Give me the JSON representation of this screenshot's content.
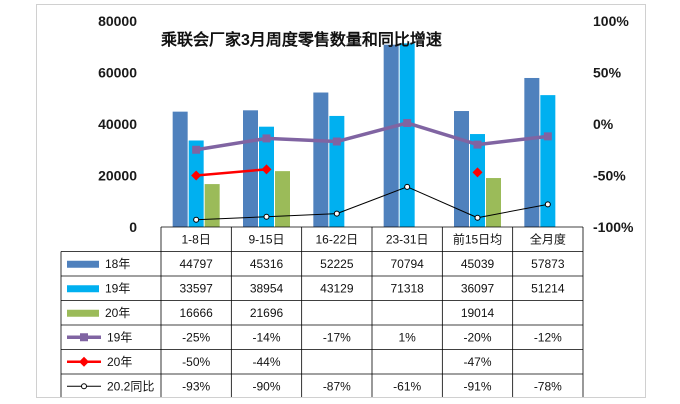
{
  "chart_data": {
    "type": "bar",
    "title": "乘联会厂家3月周度零售数量和同比增速",
    "categories": [
      "1-8日",
      "9-15日",
      "16-22日",
      "23-31日",
      "前15日均",
      "全月度"
    ],
    "ylim": [
      0,
      80000
    ],
    "y_ticks": [
      "80000",
      "60000",
      "40000",
      "20000",
      "0"
    ],
    "y2lim": [
      -100,
      100
    ],
    "y2_ticks": [
      "100%",
      "50%",
      "0%",
      "-50%",
      "-100%"
    ],
    "bar_series": [
      {
        "name": "18年",
        "color": "#4f81bd",
        "values": [
          44797,
          45316,
          52225,
          70794,
          45039,
          57873
        ],
        "labels": [
          "44797",
          "45316",
          "52225",
          "70794",
          "45039",
          "57873"
        ]
      },
      {
        "name": "19年",
        "color": "#00b0f0",
        "values": [
          33597,
          38954,
          43129,
          71318,
          36097,
          51214
        ],
        "labels": [
          "33597",
          "38954",
          "43129",
          "71318",
          "36097",
          "51214"
        ]
      },
      {
        "name": "20年",
        "color": "#9bbb59",
        "values": [
          16666,
          21696,
          null,
          null,
          19014,
          null
        ],
        "labels": [
          "16666",
          "21696",
          "",
          "",
          "19014",
          ""
        ]
      }
    ],
    "line_series": [
      {
        "name": "19年",
        "color": "#8064a2",
        "marker": "square",
        "values": [
          -25,
          -14,
          -17,
          1,
          -20,
          -12
        ],
        "labels": [
          "-25%",
          "-14%",
          "-17%",
          "1%",
          "-20%",
          "-12%"
        ]
      },
      {
        "name": "20年",
        "color": "#ff0000",
        "marker": "diamond",
        "values": [
          -50,
          -44,
          null,
          null,
          -47,
          null
        ],
        "labels": [
          "-50%",
          "-44%",
          "",
          "",
          "-47%",
          ""
        ]
      },
      {
        "name": "20.2同比",
        "color": "#000000",
        "marker": "circle",
        "values": [
          -93,
          -90,
          -87,
          -61,
          -91,
          -78
        ],
        "labels": [
          "-93%",
          "-90%",
          "-87%",
          "-61%",
          "-91%",
          "-78%"
        ]
      }
    ]
  }
}
